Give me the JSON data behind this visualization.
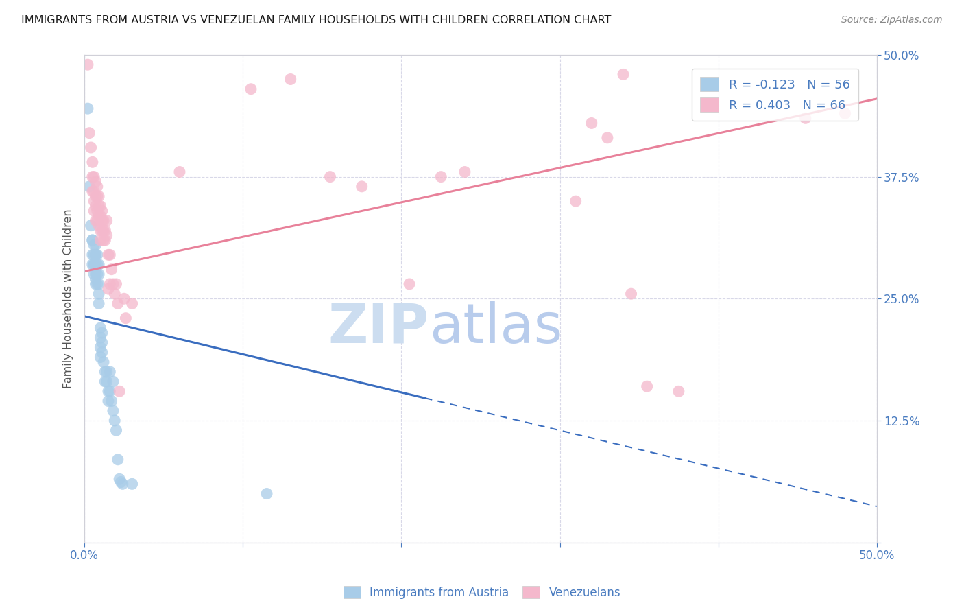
{
  "title": "IMMIGRANTS FROM AUSTRIA VS VENEZUELAN FAMILY HOUSEHOLDS WITH CHILDREN CORRELATION CHART",
  "source": "Source: ZipAtlas.com",
  "ylabel": "Family Households with Children",
  "x_min": 0.0,
  "x_max": 0.5,
  "y_min": 0.0,
  "y_max": 0.5,
  "legend_entries": [
    {
      "label": "R = -0.123   N = 56",
      "color": "#a8cce8"
    },
    {
      "label": "R = 0.403   N = 66",
      "color": "#f4b8cc"
    }
  ],
  "austria_color": "#a8cce8",
  "venezuela_color": "#f4b8cc",
  "trendline_austria_color": "#3a6dbf",
  "trendline_venezuela_color": "#e8819a",
  "background_color": "#ffffff",
  "watermark_zip_color": "#ccddf0",
  "watermark_atlas_color": "#b8ccec",
  "grid_color": "#d8d8e8",
  "tick_color": "#4a7cc0",
  "axis_color": "#d0d0d8",
  "bottom_legend_labels": [
    "Immigrants from Austria",
    "Venezuelans"
  ],
  "bottom_legend_colors": [
    "#a8cce8",
    "#f4b8cc"
  ],
  "austria_trend_start_x": 0.0,
  "austria_trend_start_y": 0.232,
  "austria_trend_solid_end_x": 0.215,
  "austria_trend_solid_end_y": 0.148,
  "austria_trend_end_x": 0.5,
  "austria_trend_end_y": 0.037,
  "venezuela_trend_start_x": 0.0,
  "venezuela_trend_start_y": 0.278,
  "venezuela_trend_end_x": 0.5,
  "venezuela_trend_end_y": 0.455,
  "austria_scatter": [
    [
      0.002,
      0.445
    ],
    [
      0.003,
      0.365
    ],
    [
      0.004,
      0.325
    ],
    [
      0.005,
      0.31
    ],
    [
      0.005,
      0.295
    ],
    [
      0.005,
      0.285
    ],
    [
      0.005,
      0.31
    ],
    [
      0.006,
      0.295
    ],
    [
      0.006,
      0.285
    ],
    [
      0.006,
      0.275
    ],
    [
      0.006,
      0.305
    ],
    [
      0.006,
      0.285
    ],
    [
      0.007,
      0.295
    ],
    [
      0.007,
      0.28
    ],
    [
      0.007,
      0.27
    ],
    [
      0.007,
      0.295
    ],
    [
      0.007,
      0.305
    ],
    [
      0.007,
      0.285
    ],
    [
      0.007,
      0.275
    ],
    [
      0.007,
      0.265
    ],
    [
      0.008,
      0.285
    ],
    [
      0.008,
      0.275
    ],
    [
      0.008,
      0.265
    ],
    [
      0.008,
      0.295
    ],
    [
      0.009,
      0.285
    ],
    [
      0.009,
      0.275
    ],
    [
      0.009,
      0.265
    ],
    [
      0.009,
      0.255
    ],
    [
      0.009,
      0.245
    ],
    [
      0.01,
      0.22
    ],
    [
      0.01,
      0.21
    ],
    [
      0.01,
      0.2
    ],
    [
      0.01,
      0.19
    ],
    [
      0.011,
      0.215
    ],
    [
      0.011,
      0.205
    ],
    [
      0.011,
      0.195
    ],
    [
      0.012,
      0.185
    ],
    [
      0.013,
      0.175
    ],
    [
      0.013,
      0.165
    ],
    [
      0.014,
      0.175
    ],
    [
      0.014,
      0.165
    ],
    [
      0.015,
      0.155
    ],
    [
      0.015,
      0.145
    ],
    [
      0.016,
      0.175
    ],
    [
      0.016,
      0.155
    ],
    [
      0.017,
      0.145
    ],
    [
      0.018,
      0.135
    ],
    [
      0.018,
      0.165
    ],
    [
      0.019,
      0.125
    ],
    [
      0.02,
      0.115
    ],
    [
      0.021,
      0.085
    ],
    [
      0.022,
      0.065
    ],
    [
      0.023,
      0.062
    ],
    [
      0.024,
      0.06
    ],
    [
      0.03,
      0.06
    ],
    [
      0.115,
      0.05
    ]
  ],
  "venezuela_scatter": [
    [
      0.002,
      0.49
    ],
    [
      0.003,
      0.42
    ],
    [
      0.004,
      0.405
    ],
    [
      0.005,
      0.39
    ],
    [
      0.005,
      0.375
    ],
    [
      0.005,
      0.36
    ],
    [
      0.006,
      0.375
    ],
    [
      0.006,
      0.36
    ],
    [
      0.006,
      0.35
    ],
    [
      0.006,
      0.34
    ],
    [
      0.007,
      0.37
    ],
    [
      0.007,
      0.355
    ],
    [
      0.007,
      0.345
    ],
    [
      0.007,
      0.33
    ],
    [
      0.008,
      0.365
    ],
    [
      0.008,
      0.355
    ],
    [
      0.008,
      0.34
    ],
    [
      0.008,
      0.33
    ],
    [
      0.009,
      0.355
    ],
    [
      0.009,
      0.345
    ],
    [
      0.009,
      0.335
    ],
    [
      0.009,
      0.325
    ],
    [
      0.01,
      0.345
    ],
    [
      0.01,
      0.335
    ],
    [
      0.01,
      0.32
    ],
    [
      0.01,
      0.31
    ],
    [
      0.011,
      0.34
    ],
    [
      0.011,
      0.33
    ],
    [
      0.011,
      0.32
    ],
    [
      0.012,
      0.33
    ],
    [
      0.012,
      0.32
    ],
    [
      0.012,
      0.31
    ],
    [
      0.013,
      0.32
    ],
    [
      0.013,
      0.31
    ],
    [
      0.014,
      0.33
    ],
    [
      0.014,
      0.315
    ],
    [
      0.015,
      0.295
    ],
    [
      0.015,
      0.26
    ],
    [
      0.016,
      0.295
    ],
    [
      0.016,
      0.265
    ],
    [
      0.017,
      0.28
    ],
    [
      0.018,
      0.265
    ],
    [
      0.019,
      0.255
    ],
    [
      0.02,
      0.265
    ],
    [
      0.021,
      0.245
    ],
    [
      0.022,
      0.155
    ],
    [
      0.025,
      0.25
    ],
    [
      0.026,
      0.23
    ],
    [
      0.03,
      0.245
    ],
    [
      0.06,
      0.38
    ],
    [
      0.105,
      0.465
    ],
    [
      0.13,
      0.475
    ],
    [
      0.155,
      0.375
    ],
    [
      0.175,
      0.365
    ],
    [
      0.205,
      0.265
    ],
    [
      0.225,
      0.375
    ],
    [
      0.24,
      0.38
    ],
    [
      0.31,
      0.35
    ],
    [
      0.32,
      0.43
    ],
    [
      0.33,
      0.415
    ],
    [
      0.34,
      0.48
    ],
    [
      0.345,
      0.255
    ],
    [
      0.355,
      0.16
    ],
    [
      0.375,
      0.155
    ],
    [
      0.455,
      0.435
    ],
    [
      0.48,
      0.44
    ]
  ]
}
